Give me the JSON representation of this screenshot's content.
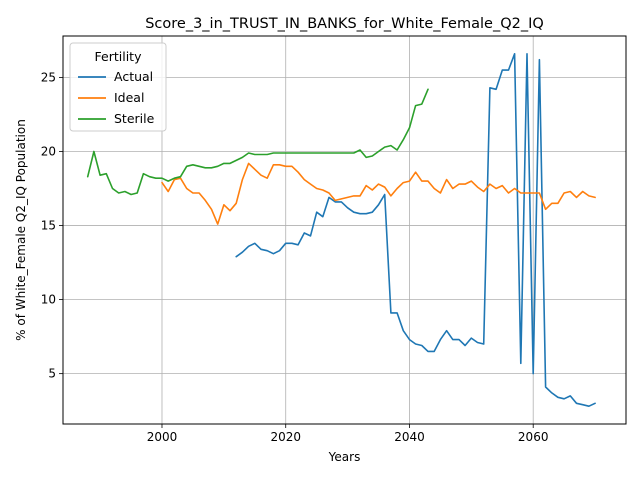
{
  "chart_data": {
    "type": "line",
    "title": "Score_3_in_TRUST_IN_BANKS_for_White_Female_Q2_IQ",
    "xlabel": "Years",
    "ylabel": "% of White_Female Q2_IQ Population",
    "xlim": [
      1984,
      2075
    ],
    "ylim": [
      1.6,
      27.8
    ],
    "xticks": [
      2000,
      2020,
      2040,
      2060
    ],
    "yticks": [
      5,
      10,
      15,
      20,
      25
    ],
    "grid": true,
    "legend": {
      "title": "Fertility",
      "placement": "top-left"
    },
    "series": [
      {
        "name": "Actual",
        "color": "#1f77b4",
        "x": [
          2012,
          2013,
          2014,
          2015,
          2016,
          2017,
          2018,
          2019,
          2020,
          2021,
          2022,
          2023,
          2024,
          2025,
          2026,
          2027,
          2028,
          2029,
          2030,
          2031,
          2032,
          2033,
          2034,
          2035,
          2036,
          2037,
          2038,
          2039,
          2040,
          2041,
          2042,
          2043,
          2044,
          2045,
          2046,
          2047,
          2048,
          2049,
          2050,
          2051,
          2052,
          2053,
          2054,
          2055,
          2056,
          2057,
          2058,
          2059,
          2060,
          2061,
          2062,
          2063,
          2064,
          2065,
          2066,
          2067,
          2068,
          2069,
          2070
        ],
        "y": [
          12.9,
          13.2,
          13.6,
          13.8,
          13.4,
          13.3,
          13.1,
          13.3,
          13.8,
          13.8,
          13.7,
          14.5,
          14.3,
          15.9,
          15.6,
          16.9,
          16.6,
          16.6,
          16.2,
          15.9,
          15.8,
          15.8,
          15.9,
          16.4,
          17.1,
          9.1,
          9.1,
          7.9,
          7.3,
          7.0,
          6.9,
          6.5,
          6.5,
          7.3,
          7.9,
          7.3,
          7.3,
          6.9,
          7.4,
          7.1,
          7.0,
          24.3,
          24.2,
          25.5,
          25.5,
          26.6,
          5.7,
          26.6,
          5.0,
          26.2,
          4.1,
          3.7,
          3.4,
          3.3,
          3.5,
          3.0,
          2.9,
          2.8,
          3.0
        ]
      },
      {
        "name": "Ideal",
        "color": "#ff7f0e",
        "x": [
          2000,
          2001,
          2002,
          2003,
          2004,
          2005,
          2006,
          2007,
          2008,
          2009,
          2010,
          2011,
          2012,
          2013,
          2014,
          2015,
          2016,
          2017,
          2018,
          2019,
          2020,
          2021,
          2022,
          2023,
          2024,
          2025,
          2026,
          2027,
          2028,
          2029,
          2030,
          2031,
          2032,
          2033,
          2034,
          2035,
          2036,
          2037,
          2038,
          2039,
          2040,
          2041,
          2042,
          2043,
          2044,
          2045,
          2046,
          2047,
          2048,
          2049,
          2050,
          2051,
          2052,
          2053,
          2054,
          2055,
          2056,
          2057,
          2058,
          2059,
          2060,
          2061,
          2062,
          2063,
          2064,
          2065,
          2066,
          2067,
          2068,
          2069,
          2070
        ],
        "y": [
          17.9,
          17.3,
          18.1,
          18.2,
          17.5,
          17.2,
          17.2,
          16.7,
          16.1,
          15.1,
          16.4,
          16.0,
          16.5,
          18.1,
          19.2,
          18.8,
          18.4,
          18.2,
          19.1,
          19.1,
          19.0,
          19.0,
          18.6,
          18.1,
          17.8,
          17.5,
          17.4,
          17.2,
          16.7,
          16.8,
          16.9,
          17.0,
          17.0,
          17.7,
          17.4,
          17.8,
          17.6,
          17.0,
          17.5,
          17.9,
          18.0,
          18.6,
          18.0,
          18.0,
          17.5,
          17.2,
          18.1,
          17.5,
          17.8,
          17.8,
          18.0,
          17.6,
          17.3,
          17.8,
          17.5,
          17.7,
          17.2,
          17.5,
          17.2,
          17.2,
          17.2,
          17.2,
          16.1,
          16.5,
          16.5,
          17.2,
          17.3,
          16.9,
          17.3,
          17.0,
          16.9
        ]
      },
      {
        "name": "Sterile",
        "color": "#2ca02c",
        "x": [
          1988,
          1989,
          1990,
          1991,
          1992,
          1993,
          1994,
          1995,
          1996,
          1997,
          1998,
          1999,
          2000,
          2001,
          2002,
          2003,
          2004,
          2005,
          2006,
          2007,
          2008,
          2009,
          2010,
          2011,
          2012,
          2013,
          2014,
          2015,
          2016,
          2017,
          2018,
          2019,
          2020,
          2021,
          2022,
          2023,
          2024,
          2025,
          2026,
          2027,
          2028,
          2029,
          2030,
          2031,
          2032,
          2033,
          2034,
          2035,
          2036,
          2037,
          2038,
          2039,
          2040,
          2041,
          2042,
          2043
        ],
        "y": [
          18.3,
          20.0,
          18.4,
          18.5,
          17.5,
          17.2,
          17.3,
          17.1,
          17.2,
          18.5,
          18.3,
          18.2,
          18.2,
          18.0,
          18.2,
          18.3,
          19.0,
          19.1,
          19.0,
          18.9,
          18.9,
          19.0,
          19.2,
          19.2,
          19.4,
          19.6,
          19.9,
          19.8,
          19.8,
          19.8,
          19.9,
          19.9,
          19.9,
          19.9,
          19.9,
          19.9,
          19.9,
          19.9,
          19.9,
          19.9,
          19.9,
          19.9,
          19.9,
          19.9,
          20.1,
          19.6,
          19.7,
          20.0,
          20.3,
          20.4,
          20.1,
          20.8,
          21.6,
          23.1,
          23.2,
          24.2
        ]
      }
    ]
  }
}
